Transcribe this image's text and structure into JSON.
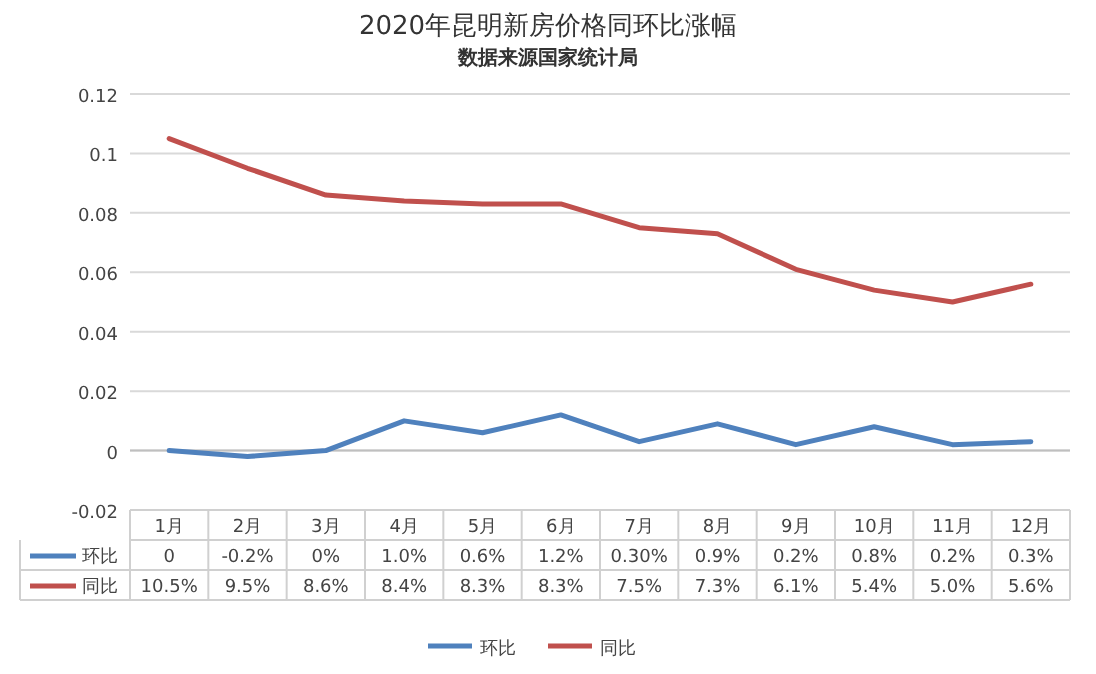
{
  "chart_data": {
    "type": "line",
    "title": "2020年昆明新房价格同环比涨幅",
    "subtitle": "数据来源国家统计局",
    "categories": [
      "1月",
      "2月",
      "3月",
      "4月",
      "5月",
      "6月",
      "7月",
      "8月",
      "9月",
      "10月",
      "11月",
      "12月"
    ],
    "series": [
      {
        "name": "环比",
        "color": "#4f81bd",
        "values": [
          0,
          -0.002,
          0,
          0.01,
          0.006,
          0.012,
          0.003,
          0.009,
          0.002,
          0.008,
          0.002,
          0.003
        ],
        "value_labels": [
          "0",
          "-0.2%",
          "0%",
          "1.0%",
          "0.6%",
          "1.2%",
          "0.30%",
          "0.9%",
          "0.2%",
          "0.8%",
          "0.2%",
          "0.3%"
        ]
      },
      {
        "name": "同比",
        "color": "#c0504d",
        "values": [
          0.105,
          0.095,
          0.086,
          0.084,
          0.083,
          0.083,
          0.075,
          0.073,
          0.061,
          0.054,
          0.05,
          0.056
        ],
        "value_labels": [
          "10.5%",
          "9.5%",
          "8.6%",
          "8.4%",
          "8.3%",
          "8.3%",
          "7.5%",
          "7.3%",
          "6.1%",
          "5.4%",
          "5.0%",
          "5.6%"
        ]
      }
    ],
    "ylim": [
      -0.02,
      0.12
    ],
    "yticks": [
      -0.02,
      0,
      0.02,
      0.04,
      0.06,
      0.08,
      0.1,
      0.12
    ],
    "grid": "y",
    "legend": "bottom",
    "marker": "none",
    "line_style": "solid"
  }
}
